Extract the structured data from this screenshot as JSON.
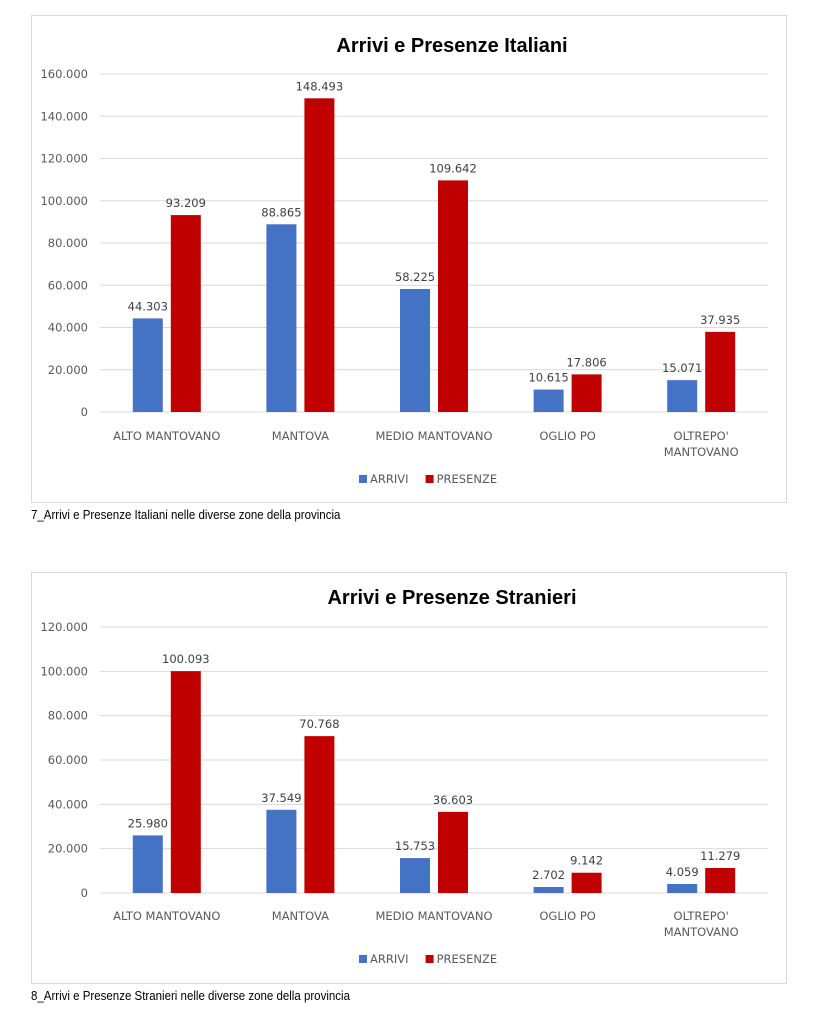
{
  "chart_data": [
    {
      "type": "bar",
      "title": "Arrivi e Presenze Italiani",
      "caption": "7_Arrivi e Presenze Italiani nelle diverse zone della provincia",
      "categories": [
        [
          "ALTO MANTOVANO"
        ],
        [
          "MANTOVA"
        ],
        [
          "MEDIO MANTOVANO"
        ],
        [
          "OGLIO PO"
        ],
        [
          "OLTREPO'",
          "MANTOVANO"
        ]
      ],
      "series": [
        {
          "name": "ARRIVI",
          "color": "#4472C4",
          "values": [
            44303,
            88865,
            58225,
            10615,
            15071
          ],
          "labels": [
            "44.303",
            "88.865",
            "58.225",
            "10.615",
            "15.071"
          ]
        },
        {
          "name": "PRESENZE",
          "color": "#C00000",
          "values": [
            93209,
            148493,
            109642,
            17806,
            37935
          ],
          "labels": [
            "93.209",
            "148.493",
            "109.642",
            "17.806",
            "37.935"
          ]
        }
      ],
      "yticks": [
        0,
        20000,
        40000,
        60000,
        80000,
        100000,
        120000,
        140000,
        160000
      ],
      "ytick_labels": [
        "0",
        "20.000",
        "40.000",
        "60.000",
        "80.000",
        "100.000",
        "120.000",
        "140.000",
        "160.000"
      ],
      "ylim": [
        0,
        160000
      ],
      "xlabel": "",
      "ylabel": "",
      "grid": true,
      "legend": "bottom"
    },
    {
      "type": "bar",
      "title": "Arrivi e Presenze Stranieri",
      "caption": "8_Arrivi e Presenze Stranieri nelle diverse zone della provincia",
      "categories": [
        [
          "ALTO MANTOVANO"
        ],
        [
          "MANTOVA"
        ],
        [
          "MEDIO MANTOVANO"
        ],
        [
          "OGLIO PO"
        ],
        [
          "OLTREPO'",
          "MANTOVANO"
        ]
      ],
      "series": [
        {
          "name": "ARRIVI",
          "color": "#4472C4",
          "values": [
            25980,
            37549,
            15753,
            2702,
            4059
          ],
          "labels": [
            "25.980",
            "37.549",
            "15.753",
            "2.702",
            "4.059"
          ]
        },
        {
          "name": "PRESENZE",
          "color": "#C00000",
          "values": [
            100093,
            70768,
            36603,
            9142,
            11279
          ],
          "labels": [
            "100.093",
            "70.768",
            "36.603",
            "9.142",
            "11.279"
          ]
        }
      ],
      "yticks": [
        0,
        20000,
        40000,
        60000,
        80000,
        100000,
        120000
      ],
      "ytick_labels": [
        "0",
        "20.000",
        "40.000",
        "60.000",
        "80.000",
        "100.000",
        "120.000"
      ],
      "ylim": [
        0,
        120000
      ],
      "xlabel": "",
      "ylabel": "",
      "grid": true,
      "legend": "bottom"
    }
  ]
}
